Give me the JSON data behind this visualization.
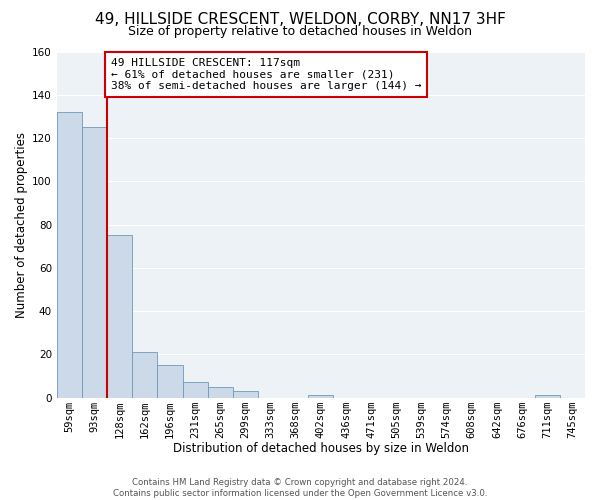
{
  "title": "49, HILLSIDE CRESCENT, WELDON, CORBY, NN17 3HF",
  "subtitle": "Size of property relative to detached houses in Weldon",
  "xlabel": "Distribution of detached houses by size in Weldon",
  "ylabel": "Number of detached properties",
  "footer_line1": "Contains HM Land Registry data © Crown copyright and database right 2024.",
  "footer_line2": "Contains public sector information licensed under the Open Government Licence v3.0.",
  "bar_labels": [
    "59sqm",
    "93sqm",
    "128sqm",
    "162sqm",
    "196sqm",
    "231sqm",
    "265sqm",
    "299sqm",
    "333sqm",
    "368sqm",
    "402sqm",
    "436sqm",
    "471sqm",
    "505sqm",
    "539sqm",
    "574sqm",
    "608sqm",
    "642sqm",
    "676sqm",
    "711sqm",
    "745sqm"
  ],
  "bar_values": [
    132,
    125,
    75,
    21,
    15,
    7,
    5,
    3,
    0,
    0,
    1,
    0,
    0,
    0,
    0,
    0,
    0,
    0,
    0,
    1,
    0
  ],
  "bar_color": "#ccd9e8",
  "bar_edge_color": "#7098b8",
  "property_line_index": 2,
  "property_line_color": "#cc0000",
  "annotation_text": "49 HILLSIDE CRESCENT: 117sqm\n← 61% of detached houses are smaller (231)\n38% of semi-detached houses are larger (144) →",
  "annotation_box_color": "#cc0000",
  "ylim": [
    0,
    160
  ],
  "yticks": [
    0,
    20,
    40,
    60,
    80,
    100,
    120,
    140,
    160
  ],
  "fig_bg_color": "#ffffff",
  "plot_bg_color": "#edf2f7",
  "grid_color": "#ffffff",
  "title_fontsize": 11,
  "subtitle_fontsize": 9,
  "axis_label_fontsize": 8.5,
  "tick_fontsize": 7.5,
  "annotation_fontsize": 8
}
